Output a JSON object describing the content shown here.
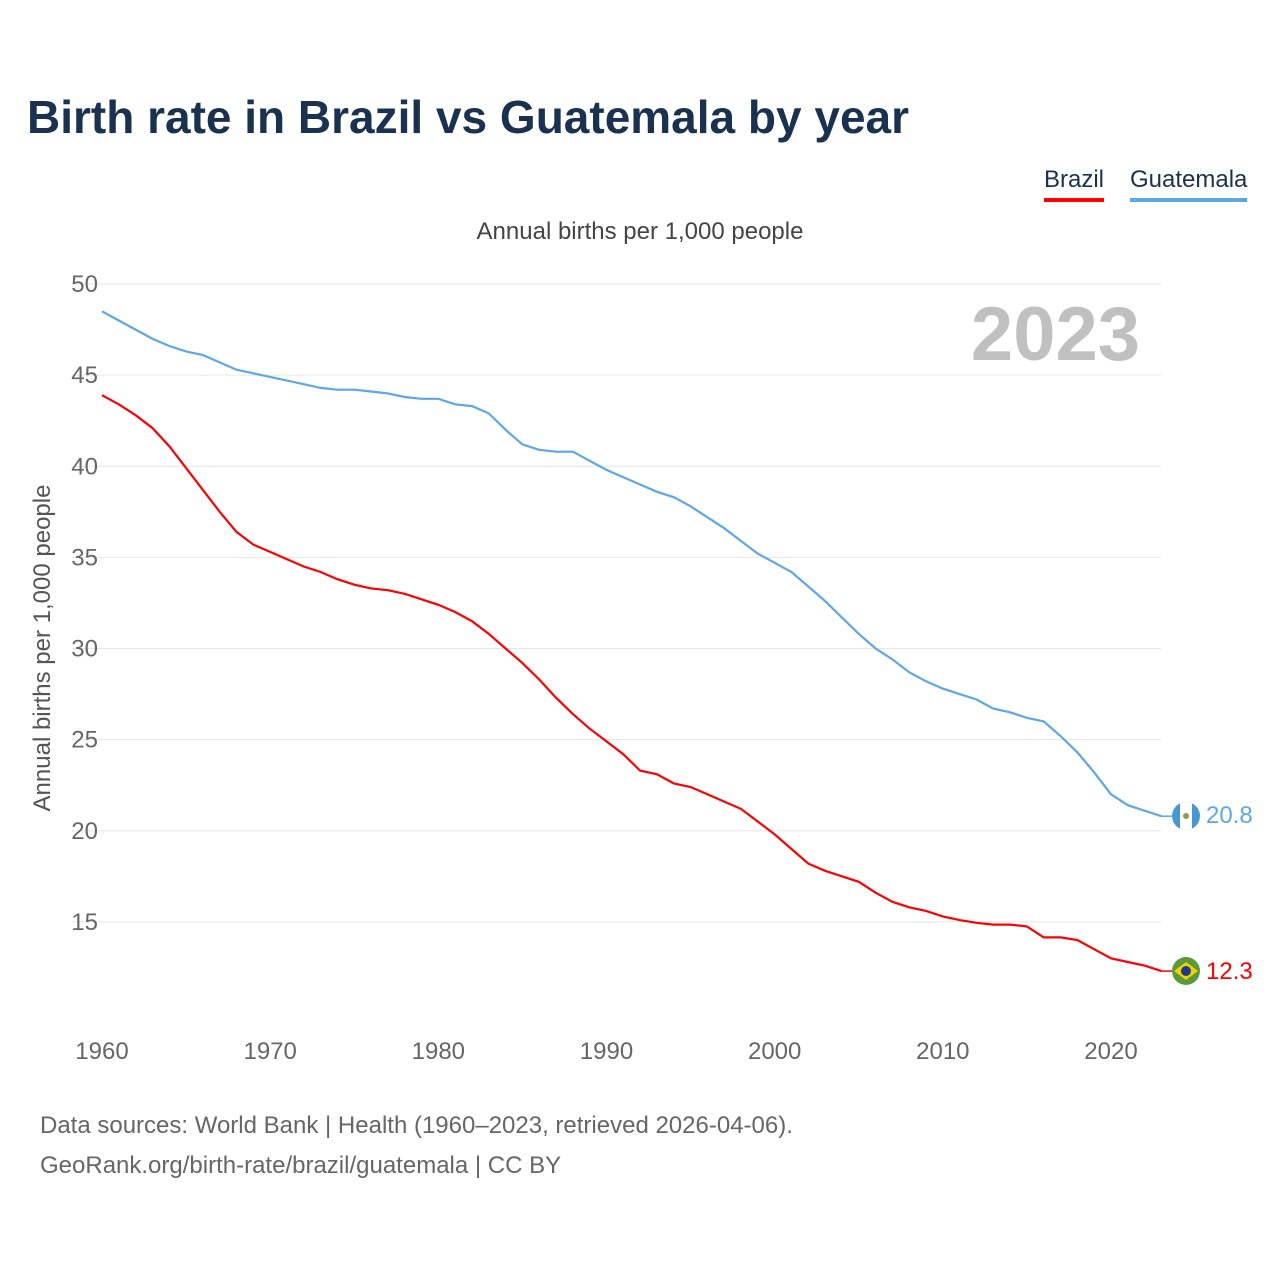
{
  "title": "Birth rate in Brazil vs Guatemala by year",
  "subtitle": "Annual births per 1,000 people",
  "year_watermark": "2023",
  "footer": {
    "line1": "Data sources: World Bank | Health (1960–2023, retrieved 2026-04-06).",
    "line2": "GeoRank.org/birth-rate/brazil/guatemala | CC BY"
  },
  "chart_data": {
    "type": "line",
    "title": "Birth rate in Brazil vs Guatemala by year",
    "xlabel": "",
    "ylabel": "Annual births per 1,000 people",
    "xlim": [
      1960,
      2023
    ],
    "ylim": [
      10,
      50
    ],
    "xticks": [
      "1960",
      "1970",
      "1980",
      "1990",
      "2000",
      "2010",
      "2020"
    ],
    "yticks": [
      "15",
      "20",
      "25",
      "30",
      "35",
      "40",
      "45",
      "50"
    ],
    "grid": true,
    "legend": "top-right",
    "x_start": 1960,
    "series": [
      {
        "name": "Brazil",
        "color": "#ff0000",
        "end_label": "12.3",
        "values": [
          43.9,
          43.4,
          42.8,
          42.1,
          41.1,
          39.9,
          38.7,
          37.5,
          36.4,
          35.7,
          35.3,
          34.9,
          34.5,
          34.2,
          33.8,
          33.5,
          33.3,
          33.2,
          33.0,
          32.7,
          32.4,
          32.0,
          31.5,
          30.8,
          30.0,
          29.2,
          28.3,
          27.3,
          26.4,
          25.6,
          24.9,
          24.2,
          23.3,
          23.1,
          22.6,
          22.4,
          22.0,
          21.6,
          21.2,
          20.5,
          19.8,
          19.0,
          18.2,
          17.8,
          17.5,
          17.2,
          16.6,
          16.1,
          15.8,
          15.6,
          15.3,
          15.1,
          14.95,
          14.85,
          14.85,
          14.75,
          14.15,
          14.15,
          14.0,
          13.5,
          13.0,
          12.8,
          12.6,
          12.3
        ]
      },
      {
        "name": "Guatemala",
        "color": "#5ea6eb",
        "end_label": "20.8",
        "values": [
          48.5,
          48.0,
          47.5,
          47.0,
          46.6,
          46.3,
          46.1,
          45.7,
          45.3,
          45.1,
          44.9,
          44.7,
          44.5,
          44.3,
          44.2,
          44.2,
          44.1,
          44.0,
          43.8,
          43.7,
          43.7,
          43.4,
          43.3,
          42.9,
          42.0,
          41.2,
          40.9,
          40.8,
          40.8,
          40.3,
          39.8,
          39.4,
          39.0,
          38.6,
          38.3,
          37.8,
          37.2,
          36.6,
          35.9,
          35.2,
          34.7,
          34.2,
          33.4,
          32.6,
          31.7,
          30.8,
          30.0,
          29.4,
          28.7,
          28.2,
          27.8,
          27.5,
          27.2,
          26.7,
          26.5,
          26.2,
          26.0,
          25.2,
          24.3,
          23.2,
          22.0,
          21.4,
          21.1,
          20.8
        ]
      }
    ]
  }
}
